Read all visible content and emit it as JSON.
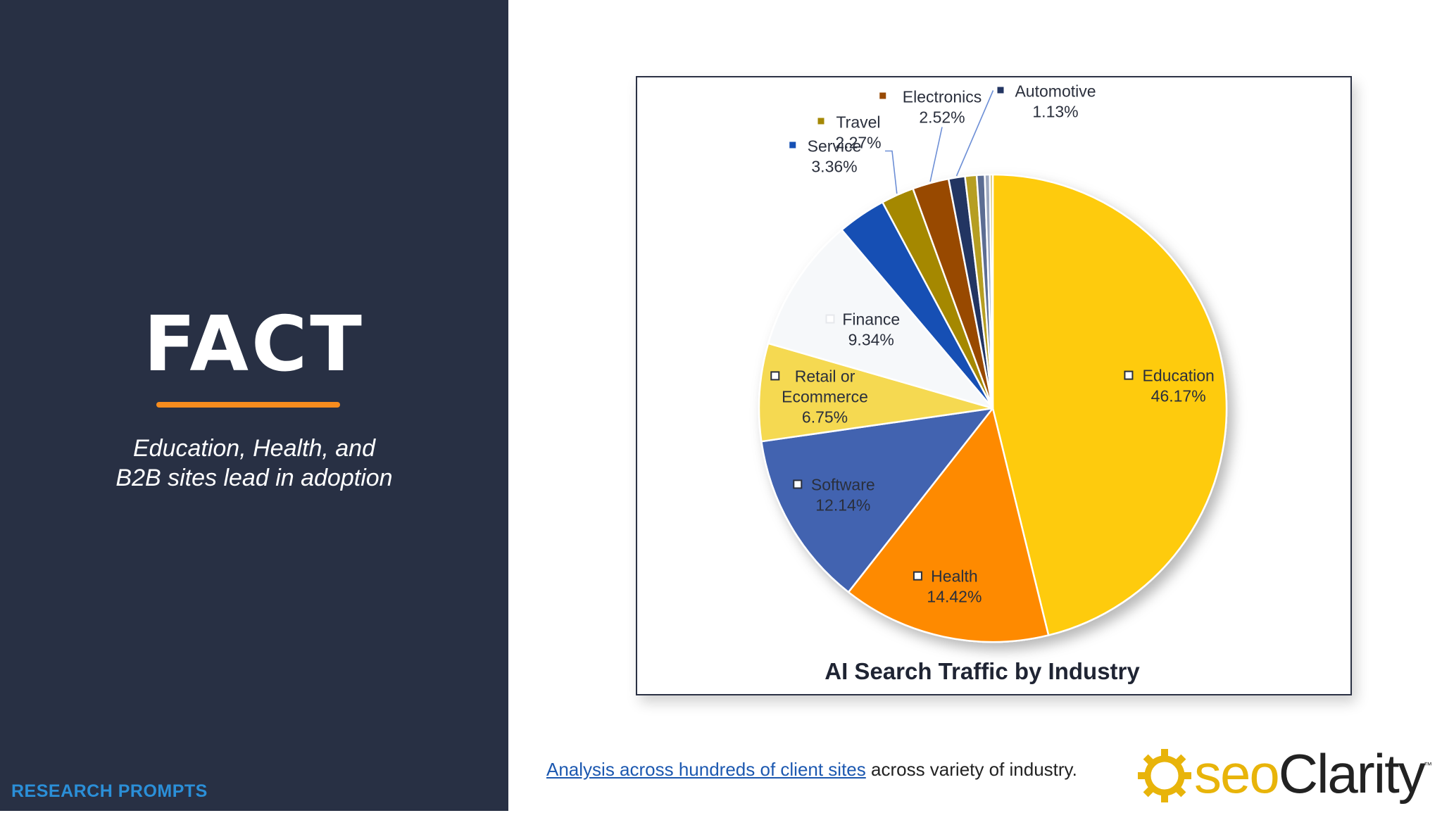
{
  "slide": {
    "heading": "FACT",
    "subtitle_line1": "Education, Health, and",
    "subtitle_line2": "B2B sites lead in adoption",
    "brand_label": "RESEARCH PROMPTS",
    "caption_link": "Analysis across hundreds of client sites",
    "caption_rest": " across variety of industry.",
    "logo_seo": "seo",
    "logo_clarity": "Clarity",
    "logo_tm": "™",
    "colors": {
      "panel": "#283044",
      "accent": "#f78c1e",
      "brand_blue": "#2b8fd8"
    }
  },
  "chart_data": {
    "type": "pie",
    "title": "AI Search Traffic by Industry",
    "start_angle_deg": 0,
    "direction": "clockwise",
    "slices": [
      {
        "label": "Education",
        "value": 46.17,
        "value_label": "46.17%",
        "color": "#fecb0b",
        "show_label": true
      },
      {
        "label": "Health",
        "value": 14.42,
        "value_label": "14.42%",
        "color": "#fe8a04",
        "show_label": true
      },
      {
        "label": "Software",
        "value": 12.14,
        "value_label": "12.14%",
        "color": "#4263b0",
        "show_label": true
      },
      {
        "label": "Retail or Ecommerce",
        "label_lines": [
          "Retail or",
          "Ecommerce"
        ],
        "value": 6.75,
        "value_label": "6.75%",
        "color": "#f5d951",
        "show_label": true
      },
      {
        "label": "Finance",
        "value": 9.34,
        "value_label": "9.34%",
        "color": "#f6f8fa",
        "show_label": true
      },
      {
        "label": "Service",
        "value": 3.36,
        "value_label": "3.36%",
        "color": "#1650b4",
        "show_label": true
      },
      {
        "label": "Travel",
        "value": 2.27,
        "value_label": "2.27%",
        "color": "#a58806",
        "show_label": true
      },
      {
        "label": "Electronics",
        "value": 2.52,
        "value_label": "2.52%",
        "color": "#984a05",
        "show_label": true
      },
      {
        "label": "Automotive",
        "value": 1.13,
        "value_label": "1.13%",
        "color": "#233562",
        "show_label": true
      },
      {
        "label": "",
        "value": 0.8,
        "color": "#b69e24",
        "show_label": false
      },
      {
        "label": "",
        "value": 0.55,
        "color": "#5c6d93",
        "show_label": false
      },
      {
        "label": "",
        "value": 0.35,
        "color": "#9ea8bf",
        "show_label": false
      },
      {
        "label": "",
        "value": 0.2,
        "color": "#d9c26a",
        "show_label": false
      }
    ],
    "legend": "inline labels"
  }
}
